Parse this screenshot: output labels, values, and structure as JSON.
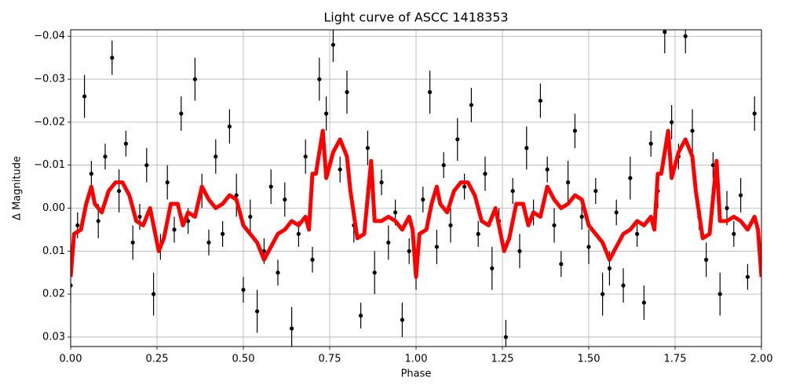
{
  "chart_data": {
    "type": "scatter",
    "title": "Light curve of ASCC 1418353",
    "xlabel": "Phase",
    "ylabel": "Δ Magnitude",
    "xlim": [
      0,
      2
    ],
    "ylim": [
      -0.0415,
      0.0322
    ],
    "y_inverted": true,
    "grid": true,
    "xticks": [
      {
        "value": 0,
        "label": "0.00"
      },
      {
        "value": 0.25,
        "label": "0.25"
      },
      {
        "value": 0.5,
        "label": "0.50"
      },
      {
        "value": 0.75,
        "label": "0.75"
      },
      {
        "value": 1,
        "label": "1.00"
      },
      {
        "value": 1.25,
        "label": "1.25"
      },
      {
        "value": 1.5,
        "label": "1.50"
      },
      {
        "value": 1.75,
        "label": "1.75"
      },
      {
        "value": 2,
        "label": "2.00"
      }
    ],
    "yticks": [
      {
        "value": -0.04,
        "label": "−0.04"
      },
      {
        "value": -0.03,
        "label": "−0.03"
      },
      {
        "value": -0.02,
        "label": "−0.02"
      },
      {
        "value": -0.01,
        "label": "−0.01"
      },
      {
        "value": 0,
        "label": "0.00"
      },
      {
        "value": 0.01,
        "label": "0.01"
      },
      {
        "value": 0.02,
        "label": "0.02"
      },
      {
        "value": 0.03,
        "label": "0.03"
      }
    ],
    "series": [
      {
        "type": "scatter",
        "color": "#000000",
        "x": [
          0.0,
          0.02,
          0.04,
          0.06,
          0.08,
          0.1,
          0.12,
          0.14,
          0.16,
          0.18,
          0.2,
          0.22,
          0.24,
          0.26,
          0.28,
          0.3,
          0.32,
          0.34,
          0.36,
          0.38,
          0.4,
          0.42,
          0.44,
          0.46,
          0.48,
          0.5,
          0.52,
          0.54,
          0.56,
          0.58,
          0.6,
          0.62,
          0.64,
          0.66,
          0.68,
          0.7,
          0.72,
          0.74,
          0.76,
          0.78,
          0.8,
          0.82,
          0.84,
          0.86,
          0.88,
          0.9,
          0.92,
          0.94,
          0.96,
          0.98,
          1.0,
          1.02,
          1.04,
          1.06,
          1.08,
          1.1,
          1.12,
          1.14,
          1.16,
          1.18,
          1.2,
          1.22,
          1.24,
          1.26,
          1.28,
          1.3,
          1.32,
          1.34,
          1.36,
          1.38,
          1.4,
          1.42,
          1.44,
          1.46,
          1.48,
          1.5,
          1.52,
          1.54,
          1.56,
          1.58,
          1.6,
          1.62,
          1.64,
          1.66,
          1.68,
          1.7,
          1.72,
          1.74,
          1.76,
          1.78,
          1.8,
          1.82,
          1.84,
          1.86,
          1.88,
          1.9,
          1.92,
          1.94,
          1.96,
          1.98
        ],
        "values": [
          0.018,
          0.004,
          -0.026,
          -0.008,
          0.003,
          -0.012,
          -0.035,
          -0.004,
          -0.015,
          0.008,
          0.002,
          -0.01,
          0.02,
          0.009,
          -0.006,
          0.005,
          -0.022,
          0.003,
          -0.03,
          -0.004,
          0.008,
          -0.012,
          0.006,
          -0.019,
          -0.003,
          0.019,
          0.002,
          0.024,
          0.01,
          -0.005,
          0.015,
          -0.002,
          0.028,
          0.006,
          -0.012,
          0.012,
          -0.03,
          -0.022,
          -0.038,
          -0.009,
          -0.027,
          0.004,
          0.025,
          -0.014,
          0.015,
          -0.006,
          0.008,
          0.001,
          0.026,
          0.01,
          0.015,
          -0.002,
          -0.027,
          0.009,
          -0.01,
          0.004,
          -0.016,
          -0.005,
          -0.024,
          0.006,
          -0.008,
          0.014,
          0.003,
          0.03,
          -0.004,
          0.01,
          -0.014,
          0.001,
          -0.025,
          -0.009,
          0.004,
          0.013,
          -0.006,
          -0.018,
          0.002,
          0.009,
          -0.004,
          0.02,
          0.014,
          0.001,
          0.018,
          -0.007,
          0.006,
          0.022,
          -0.015,
          -0.004,
          -0.041,
          -0.02,
          -0.012,
          -0.04,
          -0.018,
          0.002,
          0.012,
          -0.01,
          0.02,
          0.0,
          0.006,
          -0.003,
          0.016,
          -0.022
        ],
        "errors": [
          0.004,
          0.003,
          0.005,
          0.003,
          0.004,
          0.003,
          0.004,
          0.005,
          0.003,
          0.004,
          0.003,
          0.004,
          0.005,
          0.003,
          0.004,
          0.003,
          0.004,
          0.003,
          0.005,
          0.004,
          0.003,
          0.004,
          0.003,
          0.004,
          0.005,
          0.003,
          0.004,
          0.005,
          0.003,
          0.004,
          0.003,
          0.004,
          0.005,
          0.003,
          0.004,
          0.003,
          0.005,
          0.004,
          0.004,
          0.003,
          0.005,
          0.004,
          0.003,
          0.004,
          0.005,
          0.003,
          0.004,
          0.003,
          0.004,
          0.003,
          0.004,
          0.003,
          0.005,
          0.004,
          0.003,
          0.004,
          0.005,
          0.003,
          0.004,
          0.003,
          0.004,
          0.005,
          0.003,
          0.004,
          0.003,
          0.004,
          0.005,
          0.003,
          0.004,
          0.003,
          0.004,
          0.003,
          0.005,
          0.004,
          0.003,
          0.004,
          0.003,
          0.005,
          0.004,
          0.003,
          0.004,
          0.005,
          0.003,
          0.004,
          0.003,
          0.004,
          0.005,
          0.004,
          0.003,
          0.004,
          0.005,
          0.003,
          0.004,
          0.003,
          0.005,
          0.004,
          0.003,
          0.004,
          0.003,
          0.004
        ]
      },
      {
        "type": "line",
        "color": "#ff0000",
        "x": [
          0.0,
          0.01,
          0.03,
          0.045,
          0.06,
          0.07,
          0.09,
          0.11,
          0.13,
          0.15,
          0.17,
          0.19,
          0.21,
          0.23,
          0.255,
          0.27,
          0.29,
          0.31,
          0.325,
          0.34,
          0.36,
          0.38,
          0.4,
          0.42,
          0.44,
          0.46,
          0.48,
          0.5,
          0.52,
          0.54,
          0.56,
          0.58,
          0.6,
          0.62,
          0.64,
          0.66,
          0.68,
          0.69,
          0.7,
          0.71,
          0.73,
          0.74,
          0.76,
          0.78,
          0.8,
          0.81,
          0.83,
          0.85,
          0.87,
          0.88,
          0.9,
          0.92,
          0.94,
          0.96,
          0.98,
          0.99,
          1.0,
          1.01,
          1.03,
          1.045,
          1.06,
          1.07,
          1.09,
          1.11,
          1.13,
          1.15,
          1.17,
          1.19,
          1.21,
          1.23,
          1.255,
          1.27,
          1.29,
          1.31,
          1.325,
          1.34,
          1.36,
          1.38,
          1.4,
          1.42,
          1.44,
          1.46,
          1.48,
          1.5,
          1.52,
          1.54,
          1.56,
          1.58,
          1.6,
          1.62,
          1.64,
          1.66,
          1.68,
          1.69,
          1.7,
          1.71,
          1.73,
          1.74,
          1.76,
          1.78,
          1.8,
          1.81,
          1.83,
          1.85,
          1.87,
          1.88,
          1.9,
          1.92,
          1.94,
          1.96,
          1.98,
          1.99,
          2.0
        ],
        "values": [
          0.016,
          0.006,
          0.005,
          -0.001,
          -0.005,
          -0.001,
          0.001,
          -0.004,
          -0.006,
          -0.006,
          -0.003,
          0.003,
          0.004,
          0.0,
          0.01,
          0.007,
          -0.001,
          -0.001,
          0.004,
          0.001,
          0.002,
          -0.005,
          -0.002,
          0.0,
          -0.001,
          -0.003,
          -0.002,
          0.004,
          0.006,
          0.008,
          0.012,
          0.009,
          0.006,
          0.005,
          0.003,
          0.004,
          0.002,
          0.005,
          -0.008,
          -0.008,
          -0.018,
          -0.007,
          -0.013,
          -0.016,
          -0.012,
          -0.004,
          0.007,
          0.006,
          -0.011,
          0.003,
          0.003,
          0.002,
          0.003,
          0.005,
          0.002,
          0.005,
          0.016,
          0.006,
          0.005,
          -0.001,
          -0.005,
          -0.001,
          0.001,
          -0.004,
          -0.006,
          -0.006,
          -0.003,
          0.003,
          0.004,
          0.0,
          0.01,
          0.007,
          -0.001,
          -0.001,
          0.004,
          0.001,
          0.002,
          -0.005,
          -0.002,
          0.0,
          -0.001,
          -0.003,
          -0.002,
          0.004,
          0.006,
          0.008,
          0.012,
          0.009,
          0.006,
          0.005,
          0.003,
          0.004,
          0.002,
          0.005,
          -0.008,
          -0.008,
          -0.018,
          -0.007,
          -0.013,
          -0.016,
          -0.012,
          -0.004,
          0.007,
          0.006,
          -0.011,
          0.003,
          0.003,
          0.002,
          0.003,
          0.005,
          0.002,
          0.005,
          0.016
        ]
      }
    ]
  }
}
